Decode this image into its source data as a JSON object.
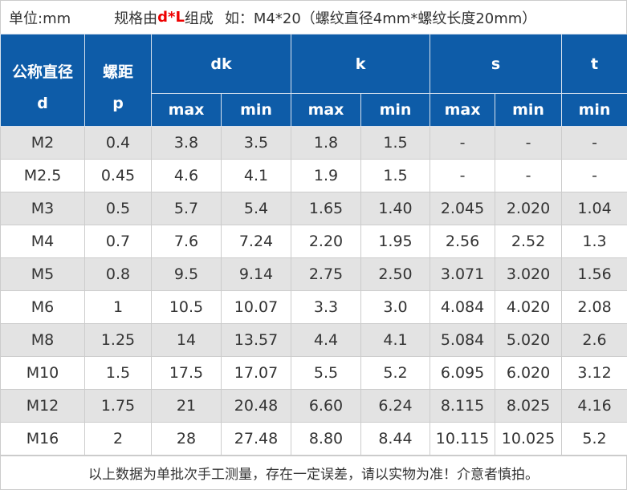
{
  "note": {
    "unit": "单位:mm",
    "spec_prefix": "规格由",
    "spec_code": "d*L",
    "spec_suffix": "组成",
    "example": "如：M4*20（螺纹直径4mm*螺纹长度20mm）"
  },
  "header": {
    "d": [
      "公称直径",
      "d"
    ],
    "p": [
      "螺距",
      "p"
    ],
    "groups": [
      "dk",
      "k",
      "s",
      "t"
    ],
    "sub": [
      "max",
      "min",
      "max",
      "min",
      "max",
      "min",
      "min"
    ]
  },
  "rows": [
    [
      "M2",
      "0.4",
      "3.8",
      "3.5",
      "1.8",
      "1.5",
      "-",
      "-",
      "-"
    ],
    [
      "M2.5",
      "0.45",
      "4.6",
      "4.1",
      "1.9",
      "1.5",
      "-",
      "-",
      "-"
    ],
    [
      "M3",
      "0.5",
      "5.7",
      "5.4",
      "1.65",
      "1.40",
      "2.045",
      "2.020",
      "1.04"
    ],
    [
      "M4",
      "0.7",
      "7.6",
      "7.24",
      "2.20",
      "1.95",
      "2.56",
      "2.52",
      "1.3"
    ],
    [
      "M5",
      "0.8",
      "9.5",
      "9.14",
      "2.75",
      "2.50",
      "3.071",
      "3.020",
      "1.56"
    ],
    [
      "M6",
      "1",
      "10.5",
      "10.07",
      "3.3",
      "3.0",
      "4.084",
      "4.020",
      "2.08"
    ],
    [
      "M8",
      "1.25",
      "14",
      "13.57",
      "4.4",
      "4.1",
      "5.084",
      "5.020",
      "2.6"
    ],
    [
      "M10",
      "1.5",
      "17.5",
      "17.07",
      "5.5",
      "5.2",
      "6.095",
      "6.020",
      "3.12"
    ],
    [
      "M12",
      "1.75",
      "21",
      "20.48",
      "6.60",
      "6.24",
      "8.115",
      "8.025",
      "4.16"
    ],
    [
      "M16",
      "2",
      "28",
      "27.48",
      "8.80",
      "8.44",
      "10.115",
      "10.025",
      "5.2"
    ]
  ],
  "footer": "以上数据为单批次手工测量，存在一定误差，请以实物为准！介意者慎拍。",
  "colors": {
    "header_bg": "#0e5ca8",
    "stripe": "#e3e3e3",
    "highlight": "#ee0000"
  }
}
